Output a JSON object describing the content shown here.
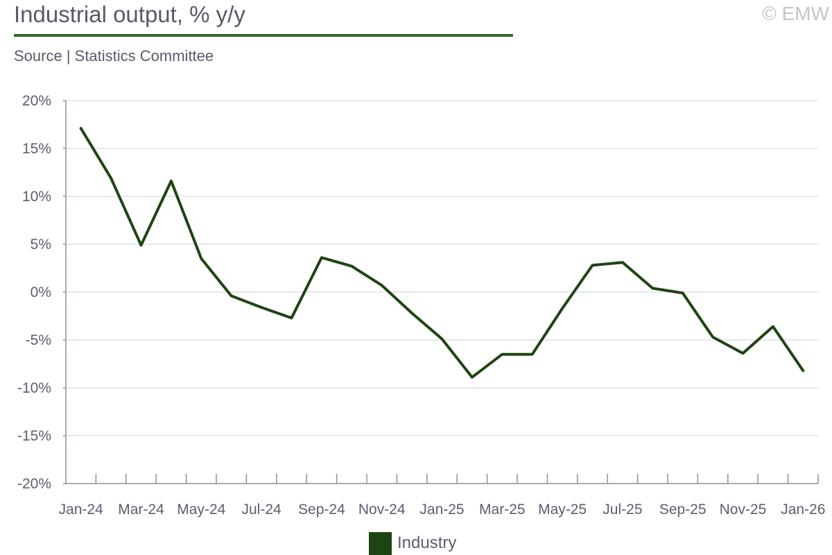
{
  "header": {
    "title": "Industrial output, % y/y",
    "subtitle": "Source | Statistics Committee",
    "copyright": "© EMW"
  },
  "colors": {
    "accent_rule": "#2e6b2b",
    "series_line": "#1f4413",
    "gridline": "#dbe4ee",
    "axis": "#8a8fa0"
  },
  "chart_data": {
    "type": "line",
    "title": "Industrial output, % y/y",
    "xlabel": "",
    "ylabel": "",
    "ylim": [
      -20,
      20
    ],
    "yticks": [
      20,
      15,
      10,
      5,
      0,
      -5,
      -10,
      -15,
      -20
    ],
    "ytick_labels": [
      "20%",
      "15%",
      "10%",
      "5%",
      "0%",
      "-5%",
      "-10%",
      "-15%",
      "-20%"
    ],
    "x": [
      "Jan-24",
      "Feb-24",
      "Mar-24",
      "Apr-24",
      "May-24",
      "Jun-24",
      "Jul-24",
      "Aug-24",
      "Sep-24",
      "Oct-24",
      "Nov-24",
      "Dec-24",
      "Jan-25",
      "Feb-25",
      "Mar-25",
      "Apr-25",
      "May-25",
      "Jun-25",
      "Jul-25",
      "Aug-25",
      "Sep-25",
      "Oct-25",
      "Nov-25",
      "Dec-25",
      "Jan-26"
    ],
    "xtick_labels": [
      "Jan-24",
      "Mar-24",
      "May-24",
      "Jul-24",
      "Sep-24",
      "Nov-24",
      "Jan-25",
      "Mar-25",
      "May-25",
      "Jul-25",
      "Sep-25",
      "Nov-25",
      "Jan-26"
    ],
    "series": [
      {
        "name": "Industry",
        "values": [
          17.1,
          11.9,
          4.9,
          11.6,
          3.5,
          -0.4,
          -1.6,
          -2.7,
          3.6,
          2.7,
          0.7,
          -2.2,
          -4.9,
          -8.9,
          -6.5,
          -6.5,
          -1.7,
          2.8,
          3.1,
          0.4,
          -0.1,
          -4.7,
          -6.4,
          -3.6,
          -8.2
        ]
      }
    ],
    "grid": true,
    "legend_position": "bottom-center"
  }
}
